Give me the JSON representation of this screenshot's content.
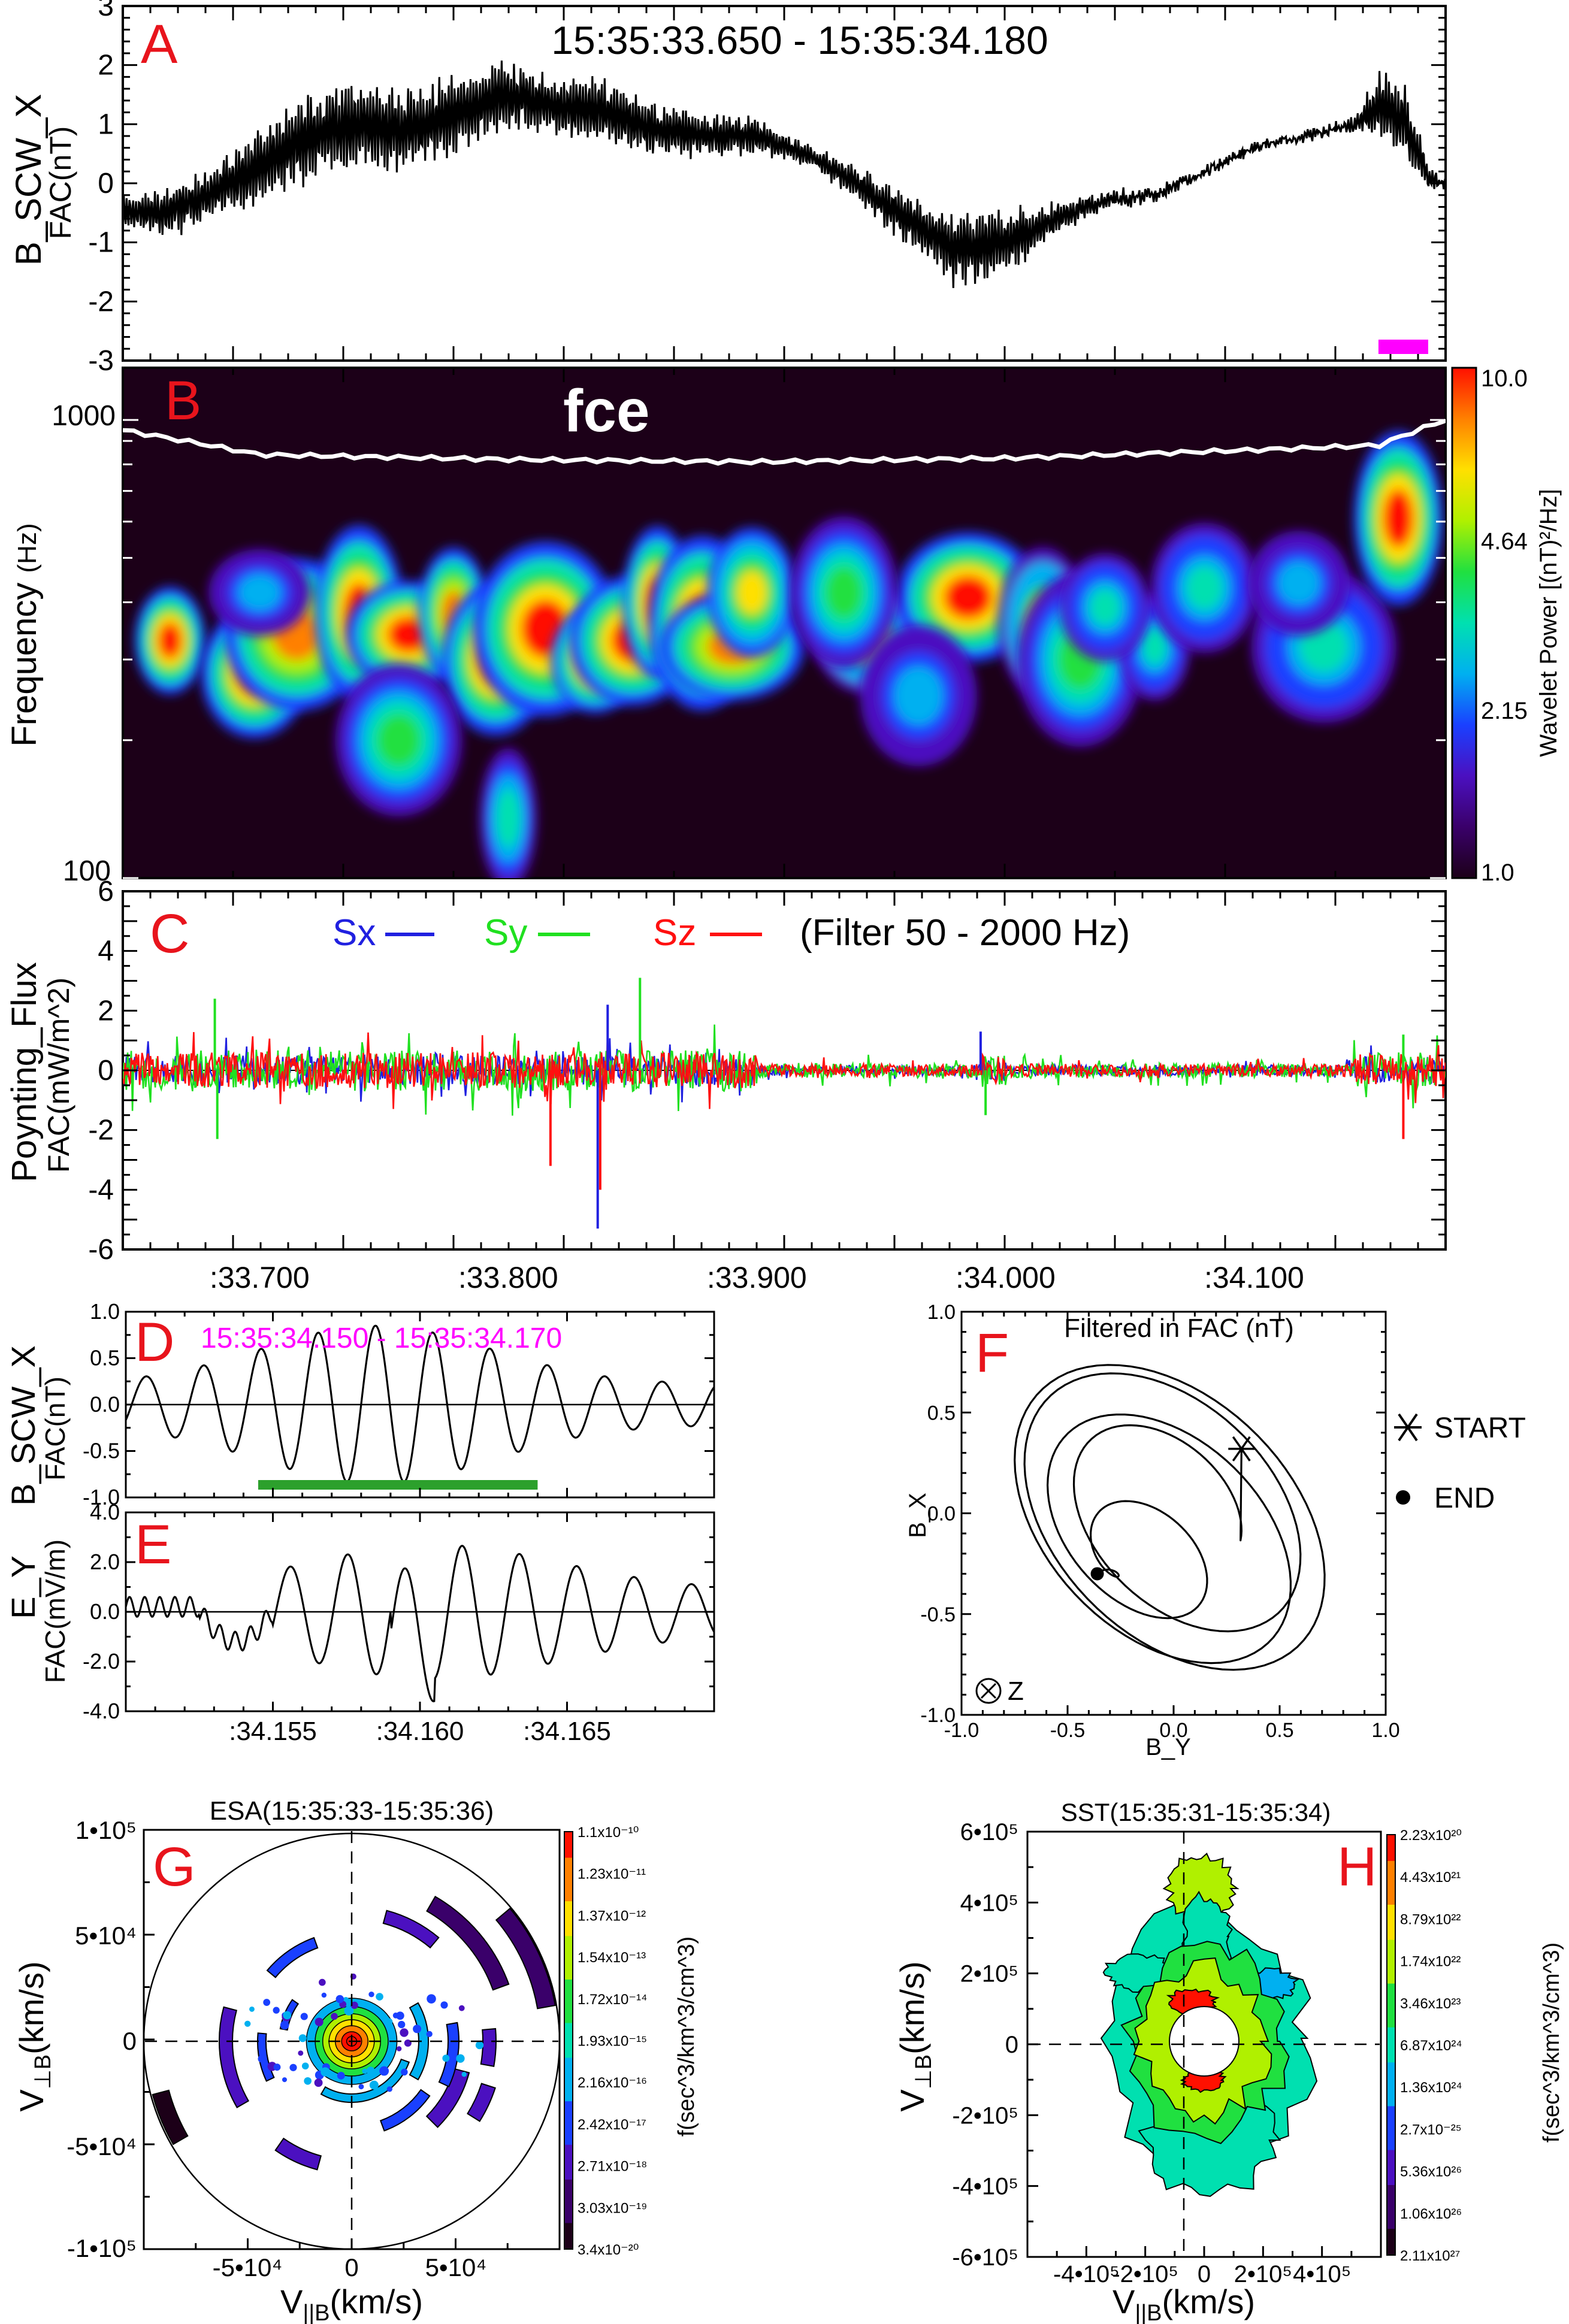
{
  "colors": {
    "panel_letter": "#e8141c",
    "magenta": "#ff00ff",
    "green_bar": "#2ca02c",
    "sx": "#2020e0",
    "sy": "#20e020",
    "sz": "#ff1010",
    "spectrogram_bg": "#1c0018",
    "fce_line": "#ffffff"
  },
  "colormap": [
    "#1c0018",
    "#3a006a",
    "#4b10c0",
    "#1a40ff",
    "#00b0f0",
    "#00e0b0",
    "#20e040",
    "#b0f000",
    "#ffe000",
    "#ff8000",
    "#ff1000"
  ],
  "chart_data": [
    {
      "id": "A",
      "type": "line",
      "letter": "A",
      "title": "15:35:33.650 - 15:35:34.180",
      "ylabel": "B_SCW_X",
      "ylabel2": "FAC(nT)",
      "ylim": [
        -3,
        3
      ],
      "yticks": [
        "3",
        "2",
        "1",
        "0",
        "-1",
        "-2",
        "-3"
      ],
      "xlim": [
        33.645,
        34.177
      ],
      "envelope": {
        "x": [
          33.645,
          33.66,
          33.68,
          33.7,
          33.72,
          33.74,
          33.76,
          33.78,
          33.8,
          33.82,
          33.84,
          33.86,
          33.88,
          33.9,
          33.92,
          33.94,
          33.96,
          33.98,
          34.0,
          34.02,
          34.04,
          34.06,
          34.08,
          34.1,
          34.12,
          34.14,
          34.15,
          34.16,
          34.17,
          34.177
        ],
        "mean": [
          -0.5,
          -0.5,
          -0.2,
          0.3,
          0.8,
          1.0,
          0.9,
          1.2,
          1.5,
          1.3,
          1.2,
          0.9,
          0.8,
          0.8,
          0.5,
          0.0,
          -0.6,
          -1.1,
          -1.0,
          -0.6,
          -0.3,
          -0.2,
          0.2,
          0.6,
          0.8,
          1.0,
          1.3,
          1.1,
          0.1,
          0.0
        ],
        "amp": [
          0.3,
          0.4,
          0.5,
          0.7,
          0.8,
          0.8,
          0.8,
          0.7,
          0.6,
          0.6,
          0.6,
          0.5,
          0.4,
          0.3,
          0.2,
          0.3,
          0.5,
          0.7,
          0.6,
          0.3,
          0.15,
          0.1,
          0.05,
          0.05,
          0.05,
          0.1,
          0.6,
          0.8,
          0.2,
          0.05
        ]
      },
      "marker": {
        "x_start": 34.15,
        "x_end": 34.17
      }
    },
    {
      "id": "B",
      "type": "heatmap",
      "letter": "B",
      "ylabel": "Frequency",
      "ylabel_unit": "(Hz)",
      "yscale": "log",
      "ylim": [
        100,
        1300
      ],
      "yticks": [
        "1000",
        "100"
      ],
      "xlim": [
        33.645,
        34.177
      ],
      "fce_label": "fce",
      "fce": {
        "x": [
          33.645,
          33.7,
          33.8,
          33.9,
          34.0,
          34.1,
          34.15,
          34.177
        ],
        "freq": [
          950,
          840,
          820,
          810,
          825,
          860,
          880,
          1000
        ]
      },
      "colorbar": {
        "label": "Wavelet Power [(nT)²/Hz]",
        "ticks": [
          "10.0",
          "4.64",
          "2.15",
          "1.0"
        ],
        "values": [
          10.0,
          4.64,
          2.15,
          1.0
        ],
        "scale": "log"
      },
      "blobs": [
        {
          "t": 33.664,
          "f": 330,
          "power": 1.0
        },
        {
          "t": 33.698,
          "f": 280,
          "power": 1.0
        },
        {
          "t": 33.715,
          "f": 340,
          "power": 0.9
        },
        {
          "t": 33.74,
          "f": 380,
          "power": 1.0
        },
        {
          "t": 33.76,
          "f": 340,
          "power": 1.0
        },
        {
          "t": 33.778,
          "f": 380,
          "power": 0.9
        },
        {
          "t": 33.795,
          "f": 300,
          "power": 1.0
        },
        {
          "t": 33.815,
          "f": 350,
          "power": 1.0
        },
        {
          "t": 33.835,
          "f": 300,
          "power": 1.0
        },
        {
          "t": 33.85,
          "f": 330,
          "power": 1.0
        },
        {
          "t": 33.86,
          "f": 400,
          "power": 1.0
        },
        {
          "t": 33.878,
          "f": 360,
          "power": 1.0
        },
        {
          "t": 33.89,
          "f": 320,
          "power": 0.9
        },
        {
          "t": 33.898,
          "f": 420,
          "power": 0.8
        },
        {
          "t": 33.756,
          "f": 200,
          "power": 0.6
        },
        {
          "t": 33.8,
          "f": 135,
          "power": 0.45
        },
        {
          "t": 33.945,
          "f": 330,
          "power": 0.7
        },
        {
          "t": 33.985,
          "f": 410,
          "power": 1.0
        },
        {
          "t": 34.015,
          "f": 360,
          "power": 0.7
        },
        {
          "t": 34.03,
          "f": 300,
          "power": 0.6
        },
        {
          "t": 34.06,
          "f": 320,
          "power": 0.5
        },
        {
          "t": 34.08,
          "f": 430,
          "power": 0.5
        },
        {
          "t": 34.128,
          "f": 320,
          "power": 0.5
        },
        {
          "t": 34.158,
          "f": 610,
          "power": 1.0
        },
        {
          "t": 33.7,
          "f": 420,
          "power": 0.4
        },
        {
          "t": 33.63,
          "f": 330,
          "power": 0.4
        },
        {
          "t": 33.935,
          "f": 420,
          "power": 0.6
        },
        {
          "t": 33.965,
          "f": 250,
          "power": 0.35
        },
        {
          "t": 34.04,
          "f": 390,
          "power": 0.5
        },
        {
          "t": 34.118,
          "f": 440,
          "power": 0.4
        }
      ]
    },
    {
      "id": "C",
      "type": "line",
      "letter": "C",
      "ylabel": "Poynting_Flux",
      "ylabel2": "FAC(mW/m^2)",
      "ylim": [
        -6,
        6
      ],
      "yticks": [
        "6",
        "4",
        "2",
        "0",
        "-2",
        "-4",
        "-6"
      ],
      "xlim": [
        33.645,
        34.177
      ],
      "xticks": [
        33.7,
        33.8,
        33.9,
        34.0,
        34.1
      ],
      "xticklabels": [
        ":33.700",
        ":33.800",
        ":33.900",
        ":34.000",
        ":34.100"
      ],
      "series": [
        {
          "name": "Sx",
          "color": "#2020e0",
          "amp": 0.5
        },
        {
          "name": "Sy",
          "color": "#20e020",
          "amp": 0.7
        },
        {
          "name": "Sz",
          "color": "#ff1010",
          "amp": 0.6
        }
      ],
      "filter_label": "(Filter 50 - 2000 Hz)",
      "spikes": [
        {
          "x": 33.682,
          "y": 2.4,
          "series": "Sy"
        },
        {
          "x": 33.683,
          "y": -2.3,
          "series": "Sy"
        },
        {
          "x": 33.836,
          "y": -5.3,
          "series": "Sx"
        },
        {
          "x": 33.837,
          "y": -4.0,
          "series": "Sz"
        },
        {
          "x": 33.853,
          "y": 3.1,
          "series": "Sy"
        },
        {
          "x": 33.84,
          "y": 2.2,
          "series": "Sx"
        },
        {
          "x": 33.817,
          "y": -3.2,
          "series": "Sz"
        },
        {
          "x": 33.99,
          "y": 1.3,
          "series": "Sx"
        },
        {
          "x": 33.992,
          "y": -1.5,
          "series": "Sy"
        },
        {
          "x": 34.16,
          "y": -2.3,
          "series": "Sz"
        },
        {
          "x": 34.16,
          "y": 1.2,
          "series": "Sy"
        }
      ]
    },
    {
      "id": "D",
      "type": "line",
      "letter": "D",
      "title": "15:35:34.150 - 15:35:34.170",
      "ylabel": "B_SCW_X",
      "ylabel2": "FAC(nT)",
      "ylim": [
        -1.0,
        1.0
      ],
      "yticks": [
        "1.0",
        "0.5",
        "0.0",
        "-0.5",
        "-1.0"
      ],
      "xlim": [
        34.15,
        34.17
      ],
      "wave": {
        "period": 0.00195,
        "peak": 0.85
      },
      "green_bar": {
        "x_start": 34.1545,
        "x_end": 34.164
      }
    },
    {
      "id": "E",
      "type": "line",
      "letter": "E",
      "ylabel": "E_Y",
      "ylabel2": "FAC(mV/m)",
      "ylim": [
        -4.0,
        4.0
      ],
      "yticks": [
        "4.0",
        "2.0",
        "0.0",
        "-2.0",
        "-4.0"
      ],
      "xlim": [
        34.15,
        34.17
      ],
      "xticks": [
        34.155,
        34.16,
        34.165
      ],
      "xticklabels": [
        ":34.155",
        ":34.160",
        ":34.165"
      ],
      "wave": {
        "period": 0.00195,
        "peak": 2.7,
        "min": -3.5
      }
    },
    {
      "id": "F",
      "type": "line",
      "letter": "F",
      "title": "Filtered in FAC (nT)",
      "xlabel": "B_Y",
      "ylabel": "B_X",
      "xlim": [
        -1.0,
        1.0
      ],
      "ylim": [
        -1.0,
        1.0
      ],
      "xticks": [
        "-1.0",
        "-0.5",
        "0.0",
        "0.5",
        "1.0"
      ],
      "yticks": [
        "1.0",
        "0.5",
        "0.0",
        "-0.5",
        "-1.0"
      ],
      "start": {
        "x": 0.32,
        "y": 0.32,
        "label": "START"
      },
      "end": {
        "x": -0.36,
        "y": -0.3,
        "label": "END"
      },
      "z_label": "Z"
    },
    {
      "id": "G",
      "type": "heatmap",
      "letter": "G",
      "title": "ESA(15:35:33-15:35:36)",
      "xlabel": "V||B(km/s)",
      "ylabel": "V⊥B(km/s)",
      "xlim": [
        -100000,
        100000
      ],
      "ylim": [
        -100000,
        100000
      ],
      "yticks": [
        "1•10⁵",
        "5•10⁴",
        "0",
        "-5•10⁴",
        "-1•10⁵"
      ],
      "xticks": [
        "-5•10⁴",
        "0",
        "5•10⁴"
      ],
      "colorbar": {
        "label": "f(sec^3/km^3/cm^3)",
        "ticks": [
          "1.1x10⁻¹⁰",
          "1.23x10⁻¹¹",
          "1.37x10⁻¹²",
          "1.54x10⁻¹³",
          "1.72x10⁻¹⁴",
          "1.93x10⁻¹⁵",
          "2.16x10⁻¹⁶",
          "2.42x10⁻¹⁷",
          "2.71x10⁻¹⁸",
          "3.03x10⁻¹⁹",
          "3.4x10⁻²⁰"
        ]
      }
    },
    {
      "id": "H",
      "type": "heatmap",
      "letter": "H",
      "title": "SST(15:35:31-15:35:34)",
      "xlabel": "V||B(km/s)",
      "ylabel": "V⊥B(km/s)",
      "xlim": [
        -600000,
        600000
      ],
      "ylim": [
        -600000,
        600000
      ],
      "yticks": [
        "6•10⁵",
        "4•10⁵",
        "2•10⁵",
        "0",
        "-2•10⁵",
        "-4•10⁵",
        "-6•10⁵"
      ],
      "xticks": [
        "-4•10⁵",
        "-2•10⁵",
        "0",
        "2•10⁵",
        "4•10⁵"
      ],
      "colorbar": {
        "label": "f(sec^3/km^3/cm^3)",
        "ticks": [
          "2.23x10²⁰",
          "4.43x10²¹",
          "8.79x10²²",
          "1.74x10²²",
          "3.46x10²³",
          "6.87x10²⁴",
          "1.36x10²⁴",
          "2.7x10⁻²⁵",
          "5.36x10²⁶",
          "1.06x10²⁶",
          "2.11x10²⁷"
        ]
      }
    }
  ]
}
